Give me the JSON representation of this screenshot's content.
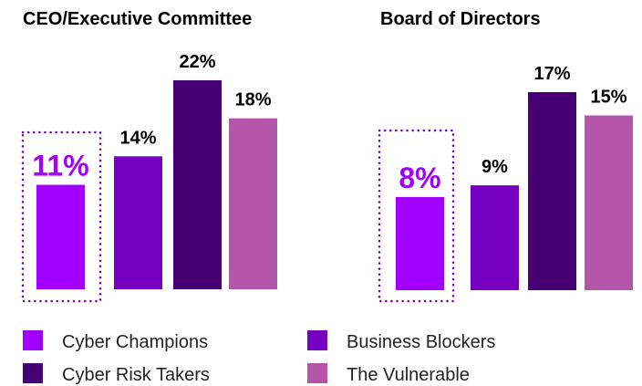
{
  "chart_data": [
    {
      "type": "bar",
      "title": "CEO/Executive Committee",
      "values": [
        11,
        14,
        22,
        18
      ],
      "value_labels": [
        "11%",
        "14%",
        "22%",
        "18%"
      ],
      "colors": [
        "#a100ff",
        "#7500c0",
        "#460073",
        "#b455aa"
      ]
    },
    {
      "type": "bar",
      "title": "Board of Directors",
      "values": [
        8,
        9,
        17,
        15
      ],
      "value_labels": [
        "8%",
        "9%",
        "17%",
        "15%"
      ],
      "colors": [
        "#a100ff",
        "#7500c0",
        "#460073",
        "#b455aa"
      ]
    }
  ],
  "legend": {
    "items": [
      {
        "name": "Cyber Champions",
        "color": "#a100ff"
      },
      {
        "name": "Business Blockers",
        "color": "#7500c0"
      },
      {
        "name": "Cyber Risk Takers",
        "color": "#460073"
      },
      {
        "name": "The Vulnerable",
        "color": "#b455aa"
      }
    ]
  }
}
